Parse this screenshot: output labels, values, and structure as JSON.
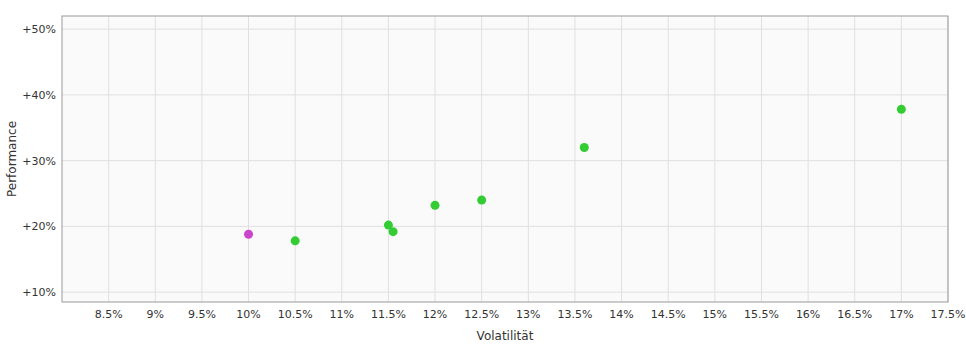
{
  "chart_data": {
    "type": "scatter",
    "x_label": "Volatilität",
    "y_label": "Performance",
    "x": [
      0.1,
      0.105,
      0.115,
      0.1155,
      0.12,
      0.125,
      0.136,
      0.17
    ],
    "values": [
      0.188,
      0.178,
      0.202,
      0.192,
      0.232,
      0.24,
      0.32,
      0.378
    ],
    "colors": [
      "#cc44cc",
      "#33cc33",
      "#33cc33",
      "#33cc33",
      "#33cc33",
      "#33cc33",
      "#33cc33",
      "#33cc33"
    ],
    "xlim": [
      0.08,
      0.175
    ],
    "ylim": [
      0.085,
      0.52
    ],
    "xticks": [
      {
        "value": 0.085,
        "label": "8.5%"
      },
      {
        "value": 0.09,
        "label": "9%"
      },
      {
        "value": 0.095,
        "label": "9.5%"
      },
      {
        "value": 0.1,
        "label": "10%"
      },
      {
        "value": 0.105,
        "label": "10.5%"
      },
      {
        "value": 0.11,
        "label": "11%"
      },
      {
        "value": 0.115,
        "label": "11.5%"
      },
      {
        "value": 0.12,
        "label": "12%"
      },
      {
        "value": 0.125,
        "label": "12.5%"
      },
      {
        "value": 0.13,
        "label": "13%"
      },
      {
        "value": 0.135,
        "label": "13.5%"
      },
      {
        "value": 0.14,
        "label": "14%"
      },
      {
        "value": 0.145,
        "label": "14.5%"
      },
      {
        "value": 0.15,
        "label": "15%"
      },
      {
        "value": 0.155,
        "label": "15.5%"
      },
      {
        "value": 0.16,
        "label": "16%"
      },
      {
        "value": 0.165,
        "label": "16.5%"
      },
      {
        "value": 0.17,
        "label": "17%"
      },
      {
        "value": 0.175,
        "label": "17.5%"
      }
    ],
    "yticks": [
      {
        "value": 0.1,
        "label": "+10%"
      },
      {
        "value": 0.2,
        "label": "+20%"
      },
      {
        "value": 0.3,
        "label": "+30%"
      },
      {
        "value": 0.4,
        "label": "+40%"
      },
      {
        "value": 0.5,
        "label": "+50%"
      }
    ],
    "grid": true
  }
}
